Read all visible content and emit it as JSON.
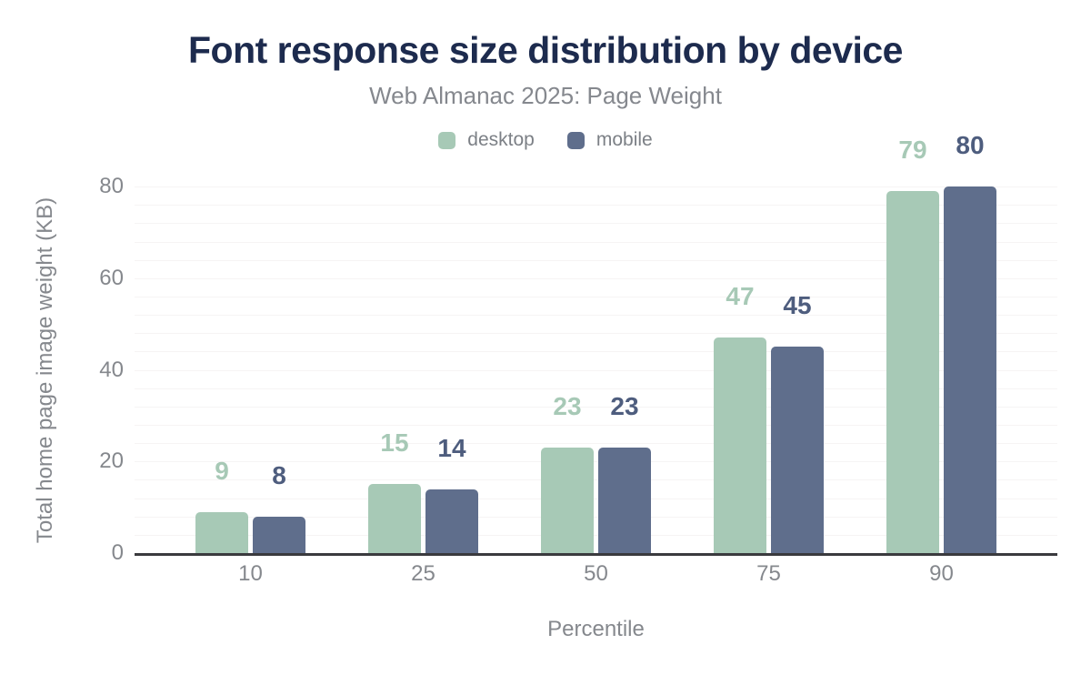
{
  "chart_data": {
    "type": "bar",
    "title": "Font response size distribution by device",
    "subtitle": "Web Almanac 2025: Page Weight",
    "categories": [
      "10",
      "25",
      "50",
      "75",
      "90"
    ],
    "series": [
      {
        "name": "desktop",
        "color": "#a7c9b6",
        "label_color": "#a7c9b6",
        "values": [
          9,
          15,
          23,
          47,
          79
        ]
      },
      {
        "name": "mobile",
        "color": "#5f6e8c",
        "label_color": "#4e5d7e",
        "values": [
          8,
          14,
          23,
          45,
          80
        ]
      }
    ],
    "xlabel": "Percentile",
    "ylabel": "Total home page image weight (KB)",
    "ylim": [
      0,
      84
    ],
    "yticks": [
      0,
      20,
      40,
      60,
      80
    ],
    "minor_grid_step": 4,
    "grid": true,
    "legend_position": "top-center"
  },
  "colors": {
    "background": "#ffffff",
    "title": "#1d2b4e",
    "subtitle": "#85888e",
    "legend_text": "#7c8086",
    "axis_text": "#85888d",
    "axis_line": "#3a3a3e",
    "gridline": "#f6f4f4"
  }
}
